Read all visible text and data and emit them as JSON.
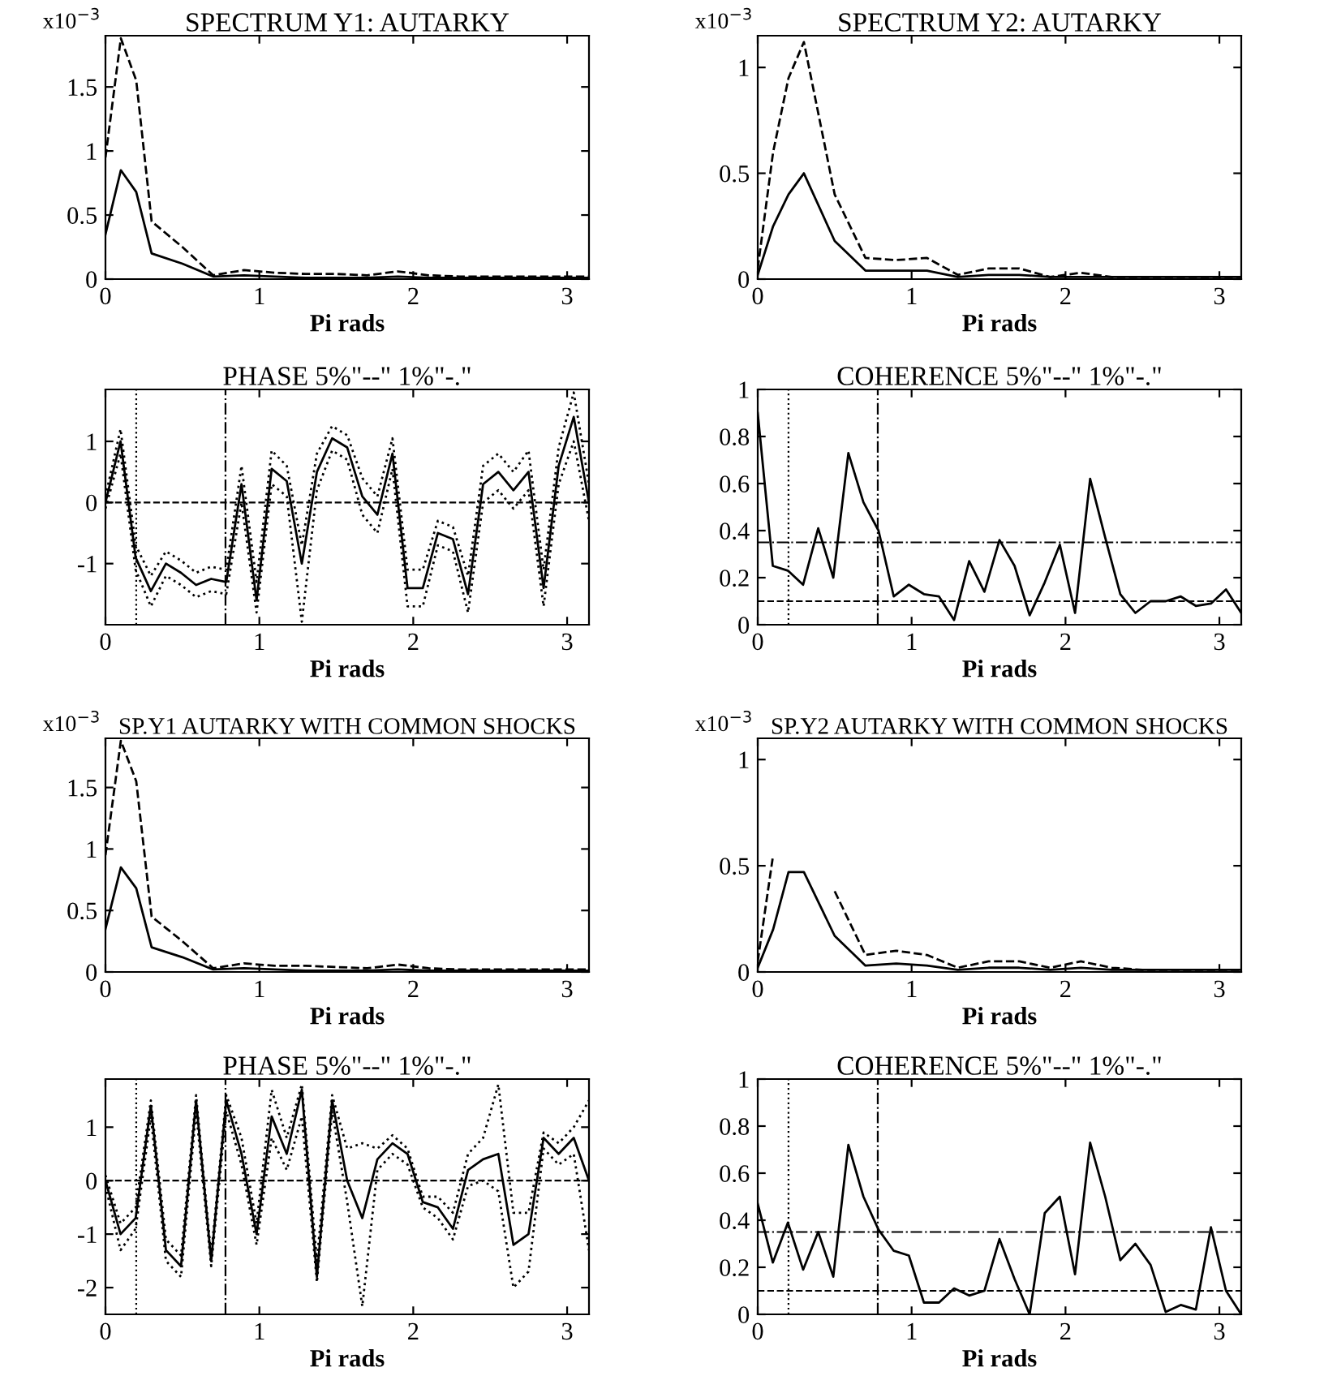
{
  "chart_data": [
    {
      "type": "line",
      "title": "SPECTRUM Y1: AUTARKY",
      "annotations": [
        "x10$^{−3}$"
      ],
      "xlabel": "Pi rads",
      "xlim": [
        0,
        3.142
      ],
      "xticks": [
        0,
        1,
        2,
        3
      ],
      "ylim": [
        0,
        1.9
      ],
      "yticks": [
        0,
        0.5,
        1,
        1.5
      ],
      "series": [
        {
          "color": "#000000",
          "line_style": "solid",
          "x": [
            0,
            0.1,
            0.2,
            0.3,
            0.5,
            0.7,
            0.9,
            1.1,
            1.3,
            1.5,
            1.7,
            1.9,
            2.1,
            2.3,
            2.5,
            2.7,
            2.9,
            3.142
          ],
          "values": [
            0.35,
            0.85,
            0.68,
            0.2,
            0.12,
            0.02,
            0.03,
            0.02,
            0.01,
            0.01,
            0.01,
            0.02,
            0.01,
            0.01,
            0.01,
            0.01,
            0.01,
            0.01
          ]
        },
        {
          "color": "#000000",
          "line_style": "dashed",
          "x": [
            0,
            0.1,
            0.2,
            0.3,
            0.5,
            0.7,
            0.9,
            1.1,
            1.3,
            1.5,
            1.7,
            1.9,
            2.1,
            2.3,
            2.5,
            2.7,
            2.9,
            3.142
          ],
          "values": [
            0.95,
            1.88,
            1.55,
            0.45,
            0.25,
            0.03,
            0.07,
            0.05,
            0.04,
            0.04,
            0.03,
            0.06,
            0.03,
            0.02,
            0.02,
            0.02,
            0.02,
            0.02
          ]
        }
      ]
    },
    {
      "type": "line",
      "title": "SPECTRUM Y2: AUTARKY",
      "annotations": [
        "x10$^{−3}$"
      ],
      "xlabel": "Pi rads",
      "xlim": [
        0,
        3.142
      ],
      "xticks": [
        0,
        1,
        2,
        3
      ],
      "ylim": [
        0,
        1.15
      ],
      "yticks": [
        0,
        0.5,
        1
      ],
      "series": [
        {
          "color": "#000000",
          "line_style": "solid",
          "x": [
            0,
            0.1,
            0.2,
            0.3,
            0.5,
            0.7,
            0.9,
            1.1,
            1.3,
            1.5,
            1.7,
            1.9,
            2.1,
            2.3,
            2.5,
            2.7,
            2.9,
            3.142
          ],
          "values": [
            0.02,
            0.25,
            0.4,
            0.5,
            0.18,
            0.04,
            0.04,
            0.04,
            0.01,
            0.02,
            0.02,
            0.01,
            0.01,
            0.01,
            0.01,
            0.01,
            0.01,
            0.01
          ]
        },
        {
          "color": "#000000",
          "line_style": "dashed",
          "x": [
            0,
            0.1,
            0.2,
            0.3,
            0.5,
            0.7,
            0.9,
            1.1,
            1.3,
            1.5,
            1.7,
            1.9,
            2.1,
            2.3,
            2.5,
            2.7,
            2.9,
            3.142
          ],
          "values": [
            0.05,
            0.6,
            0.95,
            1.12,
            0.4,
            0.1,
            0.09,
            0.1,
            0.02,
            0.05,
            0.05,
            0.01,
            0.03,
            0.01,
            0.01,
            0.01,
            0.01,
            0.01
          ]
        }
      ]
    },
    {
      "type": "line",
      "title": "PHASE 5%\"--\" 1%\"-.\"",
      "xlabel": "Pi rads",
      "xlim": [
        0,
        3.142
      ],
      "xticks": [
        0,
        1,
        2,
        3
      ],
      "ylim": [
        -2,
        1.85
      ],
      "yticks": [
        -1,
        0,
        1
      ],
      "x": [
        0,
        0.098,
        0.196,
        0.295,
        0.393,
        0.491,
        0.589,
        0.687,
        0.785,
        0.884,
        0.982,
        1.08,
        1.178,
        1.276,
        1.374,
        1.473,
        1.571,
        1.669,
        1.767,
        1.865,
        1.963,
        2.062,
        2.16,
        2.258,
        2.356,
        2.454,
        2.553,
        2.651,
        2.749,
        2.847,
        2.945,
        3.043,
        3.142
      ],
      "ref_lines": [
        {
          "axis": "y",
          "value": 0,
          "line_style": "dashed"
        },
        {
          "axis": "x",
          "value": 0.2,
          "line_style": "dotted"
        },
        {
          "axis": "x",
          "value": 0.78,
          "line_style": "dashdot"
        }
      ],
      "series": [
        {
          "color": "#000000",
          "line_style": "solid",
          "values": [
            0,
            1.0,
            -0.9,
            -1.45,
            -1.0,
            -1.15,
            -1.35,
            -1.25,
            -1.3,
            0.3,
            -1.6,
            0.55,
            0.35,
            -1.0,
            0.5,
            1.05,
            0.9,
            0.1,
            -0.2,
            0.8,
            -1.4,
            -1.4,
            -0.5,
            -0.6,
            -1.5,
            0.3,
            0.5,
            0.2,
            0.5,
            -1.4,
            0.6,
            1.4,
            0.0
          ]
        },
        {
          "color": "#000000",
          "line_style": "dotted",
          "values": [
            0.1,
            1.2,
            -0.7,
            -1.2,
            -0.8,
            -0.95,
            -1.15,
            -1.05,
            -1.1,
            0.6,
            -1.3,
            0.85,
            0.6,
            -0.7,
            0.8,
            1.25,
            1.1,
            0.4,
            0.1,
            1.05,
            -1.1,
            -1.1,
            -0.3,
            -0.4,
            -1.2,
            0.6,
            0.8,
            0.5,
            0.85,
            -1.1,
            0.9,
            1.8,
            0.3
          ]
        },
        {
          "color": "#000000",
          "line_style": "dotted",
          "values": [
            -0.1,
            0.8,
            -1.1,
            -1.7,
            -1.2,
            -1.35,
            -1.55,
            -1.45,
            -1.5,
            0.0,
            -1.8,
            0.3,
            0.1,
            -1.95,
            0.2,
            0.85,
            0.7,
            -0.2,
            -0.5,
            0.55,
            -1.7,
            -1.7,
            -0.7,
            -0.8,
            -1.8,
            0.0,
            0.2,
            -0.1,
            0.2,
            -1.7,
            0.3,
            1.0,
            -0.3
          ]
        }
      ]
    },
    {
      "type": "line",
      "title": "COHERENCE 5%\"--\" 1%\"-.\"",
      "xlabel": "Pi rads",
      "xlim": [
        0,
        3.142
      ],
      "xticks": [
        0,
        1,
        2,
        3
      ],
      "ylim": [
        0,
        1
      ],
      "yticks": [
        0,
        0.2,
        0.4,
        0.6,
        0.8,
        1
      ],
      "x": [
        0,
        0.098,
        0.196,
        0.295,
        0.393,
        0.491,
        0.589,
        0.687,
        0.785,
        0.884,
        0.982,
        1.08,
        1.178,
        1.276,
        1.374,
        1.473,
        1.571,
        1.669,
        1.767,
        1.865,
        1.963,
        2.062,
        2.16,
        2.258,
        2.356,
        2.454,
        2.553,
        2.651,
        2.749,
        2.847,
        2.945,
        3.043,
        3.142
      ],
      "ref_lines": [
        {
          "axis": "y",
          "value": 0.1,
          "line_style": "dashed"
        },
        {
          "axis": "y",
          "value": 0.35,
          "line_style": "dashdot"
        },
        {
          "axis": "x",
          "value": 0.2,
          "line_style": "dotted"
        },
        {
          "axis": "x",
          "value": 0.78,
          "line_style": "dashdot"
        }
      ],
      "series": [
        {
          "color": "#000000",
          "line_style": "solid",
          "values": [
            0.9,
            0.25,
            0.23,
            0.17,
            0.41,
            0.2,
            0.73,
            0.52,
            0.4,
            0.12,
            0.17,
            0.13,
            0.12,
            0.02,
            0.27,
            0.14,
            0.36,
            0.25,
            0.04,
            0.18,
            0.34,
            0.05,
            0.62,
            0.37,
            0.13,
            0.05,
            0.1,
            0.1,
            0.12,
            0.08,
            0.09,
            0.15,
            0.05
          ]
        }
      ]
    },
    {
      "type": "line",
      "title": "SP.Y1 AUTARKY WITH COMMON SHOCKS",
      "annotations": [
        "x10$^{−3}$"
      ],
      "xlabel": "Pi rads",
      "xlim": [
        0,
        3.142
      ],
      "xticks": [
        0,
        1,
        2,
        3
      ],
      "ylim": [
        0,
        1.9
      ],
      "yticks": [
        0,
        0.5,
        1,
        1.5
      ],
      "series": [
        {
          "color": "#000000",
          "line_style": "solid",
          "x": [
            0,
            0.1,
            0.2,
            0.3,
            0.5,
            0.7,
            0.9,
            1.1,
            1.3,
            1.5,
            1.7,
            1.9,
            2.1,
            2.3,
            2.5,
            2.7,
            2.9,
            3.142
          ],
          "values": [
            0.35,
            0.85,
            0.68,
            0.2,
            0.12,
            0.02,
            0.03,
            0.02,
            0.01,
            0.01,
            0.01,
            0.02,
            0.01,
            0.01,
            0.01,
            0.01,
            0.01,
            0.01
          ]
        },
        {
          "color": "#000000",
          "line_style": "dashed",
          "x": [
            0,
            0.1,
            0.2,
            0.3,
            0.5,
            0.7,
            0.9,
            1.1,
            1.3,
            1.5,
            1.7,
            1.9,
            2.1,
            2.3,
            2.5,
            2.7,
            2.9,
            3.142
          ],
          "values": [
            0.95,
            1.88,
            1.55,
            0.45,
            0.25,
            0.03,
            0.07,
            0.05,
            0.05,
            0.04,
            0.03,
            0.06,
            0.03,
            0.02,
            0.02,
            0.02,
            0.02,
            0.02
          ]
        }
      ]
    },
    {
      "type": "line",
      "title": "SP.Y2 AUTARKY WITH COMMON SHOCKS",
      "annotations": [
        "x10$^{−3}$"
      ],
      "xlabel": "Pi rads",
      "xlim": [
        0,
        3.142
      ],
      "xticks": [
        0,
        1,
        2,
        3
      ],
      "ylim": [
        0,
        1.1
      ],
      "yticks": [
        0,
        0.5,
        1
      ],
      "series": [
        {
          "color": "#000000",
          "line_style": "solid",
          "x": [
            0,
            0.1,
            0.2,
            0.3,
            0.5,
            0.7,
            0.9,
            1.1,
            1.3,
            1.5,
            1.7,
            1.9,
            2.1,
            2.3,
            2.5,
            2.7,
            2.9,
            3.142
          ],
          "values": [
            0.02,
            0.2,
            0.47,
            0.47,
            0.17,
            0.03,
            0.04,
            0.03,
            0.01,
            0.02,
            0.02,
            0.01,
            0.02,
            0.01,
            0.01,
            0.01,
            0.01,
            0.01
          ]
        },
        {
          "color": "#000000",
          "line_style": "dashed",
          "x": [
            0,
            0.1,
            0.2,
            0.3,
            0.5,
            0.7,
            0.9,
            1.1,
            1.3,
            1.5,
            1.7,
            1.9,
            2.1,
            2.3,
            2.5,
            2.7,
            2.9,
            3.142
          ],
          "values": [
            0.05,
            0.55,
            null,
            null,
            0.38,
            0.08,
            0.1,
            0.08,
            0.02,
            0.05,
            0.05,
            0.02,
            0.05,
            0.02,
            0.01,
            0.01,
            0.01,
            0.01
          ]
        }
      ]
    },
    {
      "type": "line",
      "title": "PHASE 5%\"--\" 1%\"-.\"",
      "xlabel": "Pi rads",
      "xlim": [
        0,
        3.142
      ],
      "xticks": [
        0,
        1,
        2,
        3
      ],
      "ylim": [
        -2.5,
        1.9
      ],
      "yticks": [
        -2,
        -1,
        0,
        1
      ],
      "x": [
        0,
        0.098,
        0.196,
        0.295,
        0.393,
        0.491,
        0.589,
        0.687,
        0.785,
        0.884,
        0.982,
        1.08,
        1.178,
        1.276,
        1.374,
        1.473,
        1.571,
        1.669,
        1.767,
        1.865,
        1.963,
        2.062,
        2.16,
        2.258,
        2.356,
        2.454,
        2.553,
        2.651,
        2.749,
        2.847,
        2.945,
        3.043,
        3.142
      ],
      "ref_lines": [
        {
          "axis": "y",
          "value": 0,
          "line_style": "dashed"
        },
        {
          "axis": "x",
          "value": 0.2,
          "line_style": "dotted"
        },
        {
          "axis": "x",
          "value": 0.78,
          "line_style": "dashdot"
        }
      ],
      "series": [
        {
          "color": "#000000",
          "line_style": "solid",
          "values": [
            0,
            -1.0,
            -0.7,
            1.4,
            -1.3,
            -1.6,
            1.5,
            -1.5,
            1.5,
            0.5,
            -1.0,
            1.2,
            0.5,
            1.7,
            -1.8,
            1.5,
            0.0,
            -0.7,
            0.4,
            0.7,
            0.5,
            -0.4,
            -0.5,
            -0.9,
            0.2,
            0.4,
            0.5,
            -1.2,
            -1.0,
            0.8,
            0.5,
            0.8,
            0.0
          ]
        },
        {
          "color": "#000000",
          "line_style": "dotted",
          "values": [
            0.1,
            -0.8,
            -0.5,
            1.5,
            -1.1,
            -1.4,
            1.6,
            -1.4,
            1.6,
            0.8,
            -0.8,
            1.7,
            0.8,
            1.8,
            -1.5,
            1.6,
            0.6,
            0.7,
            0.6,
            0.85,
            0.6,
            -0.3,
            -0.3,
            -0.6,
            0.5,
            0.8,
            1.8,
            -0.6,
            -0.6,
            0.9,
            0.7,
            1.0,
            1.5
          ]
        },
        {
          "color": "#000000",
          "line_style": "dotted",
          "values": [
            -0.1,
            -1.3,
            -0.9,
            1.2,
            -1.5,
            -1.8,
            1.3,
            -1.6,
            1.3,
            0.3,
            -1.2,
            0.8,
            0.2,
            1.2,
            -1.9,
            1.3,
            -0.4,
            -2.35,
            0.2,
            0.5,
            0.3,
            -0.5,
            -0.7,
            -1.1,
            -0.1,
            0.0,
            -0.2,
            -2.0,
            -1.7,
            0.6,
            0.3,
            0.5,
            -1.3
          ]
        }
      ]
    },
    {
      "type": "line",
      "title": "COHERENCE 5%\"--\" 1%\"-.\"",
      "xlabel": "Pi rads",
      "xlim": [
        0,
        3.142
      ],
      "xticks": [
        0,
        1,
        2,
        3
      ],
      "ylim": [
        0,
        1
      ],
      "yticks": [
        0,
        0.2,
        0.4,
        0.6,
        0.8,
        1
      ],
      "x": [
        0,
        0.098,
        0.196,
        0.295,
        0.393,
        0.491,
        0.589,
        0.687,
        0.785,
        0.884,
        0.982,
        1.08,
        1.178,
        1.276,
        1.374,
        1.473,
        1.571,
        1.669,
        1.767,
        1.865,
        1.963,
        2.062,
        2.16,
        2.258,
        2.356,
        2.454,
        2.553,
        2.651,
        2.749,
        2.847,
        2.945,
        3.043,
        3.142
      ],
      "ref_lines": [
        {
          "axis": "y",
          "value": 0.1,
          "line_style": "dashed"
        },
        {
          "axis": "y",
          "value": 0.35,
          "line_style": "dashdot"
        },
        {
          "axis": "x",
          "value": 0.2,
          "line_style": "dotted"
        },
        {
          "axis": "x",
          "value": 0.78,
          "line_style": "dashdot"
        }
      ],
      "series": [
        {
          "color": "#000000",
          "line_style": "solid",
          "values": [
            0.47,
            0.22,
            0.39,
            0.19,
            0.35,
            0.16,
            0.72,
            0.5,
            0.36,
            0.27,
            0.25,
            0.05,
            0.05,
            0.11,
            0.08,
            0.1,
            0.32,
            0.15,
            0.0,
            0.43,
            0.5,
            0.17,
            0.73,
            0.5,
            0.23,
            0.3,
            0.21,
            0.01,
            0.04,
            0.02,
            0.37,
            0.1,
            0.0
          ]
        }
      ]
    }
  ]
}
